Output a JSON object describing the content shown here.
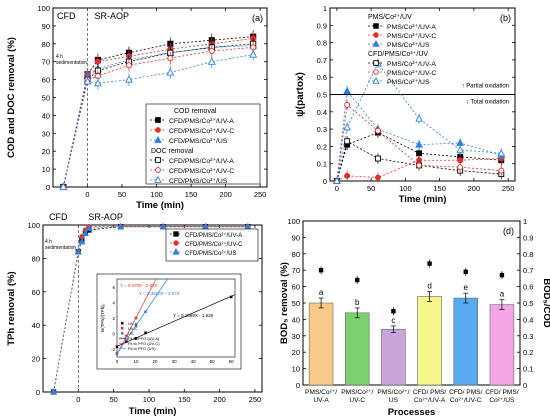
{
  "chart_data": [
    {
      "panel": "(a)",
      "type": "line",
      "ylabel": "COD and DOC removal (%)",
      "xlabel": "Time (min)",
      "xlim": [
        -50,
        260
      ],
      "ylim": [
        0,
        100
      ],
      "xticks": [
        0,
        50,
        100,
        150,
        200,
        250
      ],
      "yticks": [
        0,
        10,
        20,
        30,
        40,
        50,
        60,
        70,
        80,
        90,
        100
      ],
      "region_labels": [
        "CFD",
        "SR-AOP"
      ],
      "annotation": "4 h sedimentation",
      "legend_headers": [
        "COD removal",
        "DOC removal"
      ],
      "legend_position": "bottom-right",
      "x": [
        -35,
        0,
        15,
        60,
        120,
        180,
        240
      ],
      "series": [
        {
          "name": "CFD/PMS/Co²⁺/UV-A",
          "group": "COD",
          "marker": "square-filled",
          "color": "#000000",
          "values": [
            0,
            63,
            71,
            75,
            80,
            82,
            84
          ]
        },
        {
          "name": "CFD/PMS/Co²⁺/UV-C",
          "group": "COD",
          "marker": "circle-filled",
          "color": "#e3302b",
          "values": [
            0,
            63,
            70,
            73,
            77,
            80,
            83
          ]
        },
        {
          "name": "CFD/PMS/Co²⁺/US",
          "group": "COD",
          "marker": "triangle-filled",
          "color": "#2f7fe0",
          "values": [
            0,
            62,
            66,
            71,
            75,
            78,
            79
          ]
        },
        {
          "name": "CFD/PMS/Co²⁺/UV-A",
          "group": "DOC",
          "marker": "square-open",
          "color": "#000000",
          "values": [
            0,
            60,
            65,
            70,
            75,
            78,
            80
          ]
        },
        {
          "name": "CFD/PMS/Co²⁺/UV-C",
          "group": "DOC",
          "marker": "circle-open",
          "color": "#e3302b",
          "values": [
            0,
            60,
            62,
            68,
            72,
            76,
            78
          ]
        },
        {
          "name": "CFD/PMS/Co²⁺/US",
          "group": "DOC",
          "marker": "triangle-open",
          "color": "#2f7fe0",
          "values": [
            0,
            59,
            58,
            60,
            64,
            70,
            74
          ]
        }
      ]
    },
    {
      "panel": "(b)",
      "type": "line",
      "ylabel": "ψ(partox)",
      "xlabel": "Time (min)",
      "xlim": [
        -10,
        260
      ],
      "ylim": [
        0,
        1.0
      ],
      "xticks": [
        0,
        50,
        100,
        150,
        200,
        250
      ],
      "yticks": [
        0,
        0.1,
        0.2,
        0.3,
        0.4,
        0.5,
        0.6,
        0.7,
        0.8,
        0.9,
        1.0
      ],
      "reference_line": 0.5,
      "annotations": [
        "Partial oxidation",
        "Total oxidation"
      ],
      "legend_headers": [
        "PMS/Co²⁺/UV",
        "CFD/PMS/Co²⁺/UV"
      ],
      "legend_position": "top-left",
      "x": [
        0,
        15,
        60,
        120,
        180,
        240
      ],
      "series": [
        {
          "name": "PMS/Co²⁺/UV-A",
          "group": "PMS",
          "marker": "square-filled",
          "color": "#000000",
          "values": [
            0,
            0.21,
            0.28,
            0.16,
            0.14,
            0.12
          ]
        },
        {
          "name": "PMS/Co²⁺/UV-C",
          "group": "PMS",
          "marker": "circle-filled",
          "color": "#e3302b",
          "values": [
            0,
            0.03,
            0.02,
            0.12,
            0.12,
            0.13
          ]
        },
        {
          "name": "PMS/Co²⁺/US",
          "group": "PMS",
          "marker": "triangle-filled",
          "color": "#2f7fe0",
          "values": [
            0,
            0.52,
            0.3,
            0.21,
            0.22,
            0.15
          ]
        },
        {
          "name": "PMS/Co²⁺/UV-A",
          "group": "CFD",
          "marker": "square-open",
          "color": "#000000",
          "values": [
            0,
            0.23,
            0.13,
            0.09,
            0.06,
            0.04
          ]
        },
        {
          "name": "PMS/Co²⁺/UV-C",
          "group": "CFD",
          "marker": "circle-open",
          "color": "#e3302b",
          "values": [
            0,
            0.44,
            0.29,
            0.09,
            0.08,
            0.06
          ]
        },
        {
          "name": "PMS/Co²⁺/US",
          "group": "CFD",
          "marker": "triangle-open",
          "color": "#2f7fe0",
          "values": [
            0,
            0.31,
            0.68,
            0.36,
            0.18,
            0.16
          ]
        }
      ]
    },
    {
      "panel": "(c)",
      "type": "line",
      "ylabel": "TPh removal (%)",
      "xlabel": "Time (min)",
      "xlim": [
        -50,
        260
      ],
      "ylim": [
        0,
        100
      ],
      "xticks": [
        0,
        50,
        100,
        150,
        200,
        250
      ],
      "yticks": [
        0,
        20,
        40,
        60,
        80,
        100
      ],
      "region_labels": [
        "CFD",
        "SR-AOP"
      ],
      "annotation": "4 h sedimentation",
      "legend_position": "top-right",
      "x": [
        -35,
        0,
        5,
        10,
        15,
        60,
        120,
        180,
        240
      ],
      "series": [
        {
          "name": "CFD/PMS/Co²⁺/UV-A",
          "marker": "square-filled",
          "color": "#000000",
          "values": [
            0,
            84,
            91,
            95,
            97,
            99,
            99,
            99,
            99
          ]
        },
        {
          "name": "CFD/PMS/Co²⁺/UV-C",
          "marker": "circle-filled",
          "color": "#e3302b",
          "values": [
            0,
            84,
            93,
            97,
            99,
            99,
            99,
            99,
            99
          ]
        },
        {
          "name": "CFD/PMS/Co²⁺/US",
          "marker": "triangle-filled",
          "color": "#2f7fe0",
          "values": [
            0,
            84,
            90,
            95,
            98,
            99,
            99,
            99,
            99
          ]
        }
      ],
      "inset": {
        "type": "scatter",
        "ylabel": "ln(TPh)/[TPh]₀",
        "xticks": [
          0,
          10,
          20,
          30,
          40,
          50,
          60
        ],
        "yticks": [
          -2,
          0,
          2,
          4,
          6
        ],
        "xlim": [
          0,
          62
        ],
        "ylim": [
          -3,
          7
        ],
        "equations": [
          {
            "text": "Y = 0.4705 - 2.672",
            "color": "#e3302b"
          },
          {
            "text": "Y = 0.3603X - 2.573",
            "color": "#2f7fe0"
          },
          {
            "text": "Y = 0.1069X - 1.628",
            "color": "#000000"
          }
        ],
        "legend": [
          "UV-A",
          "UV-C",
          "US",
          "Fit to PFO (UV-A)",
          "Fit to PFO (UV-C)",
          "Fit to PFO (US)"
        ],
        "fits": [
          {
            "color": "#000000",
            "slope": 0.1069,
            "intercept": -1.628
          },
          {
            "color": "#e3302b",
            "slope": 0.4705,
            "intercept": -2.672
          },
          {
            "color": "#2f7fe0",
            "slope": 0.3603,
            "intercept": -2.573
          }
        ],
        "points": [
          {
            "color": "#000000",
            "x": [
              0,
              5,
              10,
              15,
              60
            ],
            "y": [
              -1.7,
              -1.0,
              -0.6,
              0.1,
              4.7
            ]
          },
          {
            "color": "#e3302b",
            "x": [
              0,
              5,
              10
            ],
            "y": [
              -2.6,
              -0.3,
              2.0
            ]
          },
          {
            "color": "#2f7fe0",
            "x": [
              0,
              5,
              10,
              15
            ],
            "y": [
              -2.5,
              -0.8,
              1.0,
              2.8
            ]
          }
        ]
      }
    },
    {
      "panel": "(d)",
      "type": "bar",
      "ylabel": "BOD₅ removal (%)",
      "ylabel_right": "BOD₅/COD",
      "xlabel": "Processes",
      "ylim": [
        0,
        100
      ],
      "ylim_right": [
        0,
        1.0
      ],
      "yticks": [
        0,
        10,
        20,
        30,
        40,
        50,
        60,
        70,
        80,
        90,
        100
      ],
      "yticks_right": [
        0,
        0.1,
        0.2,
        0.3,
        0.4,
        0.5,
        0.6,
        0.7,
        0.8,
        0.9,
        1.0
      ],
      "categories": [
        [
          "PMS/Co²⁺/",
          "UV-A"
        ],
        [
          "PMS/Co²⁺/",
          "UV-C"
        ],
        [
          "PMS/Co²⁺/",
          "US"
        ],
        [
          "CFD/ PMS/",
          "Co²⁺/UV-A"
        ],
        [
          "CFD/ PMS/",
          "Co²⁺/UV-C"
        ],
        [
          "CFD/ PMS/",
          "Co²⁺/US"
        ]
      ],
      "bar_colors": [
        "#f9c989",
        "#7bd06f",
        "#c8a6da",
        "#f6f68a",
        "#5aaaf0",
        "#f4a6e6"
      ],
      "values": [
        50,
        44,
        34,
        54,
        53,
        49
      ],
      "errors": [
        3,
        3,
        2,
        3,
        3,
        3
      ],
      "letters": [
        "a",
        "b",
        "c",
        "d",
        "e",
        "a"
      ],
      "ratio_values": [
        0.7,
        0.64,
        0.45,
        0.74,
        0.69,
        0.67
      ]
    }
  ]
}
